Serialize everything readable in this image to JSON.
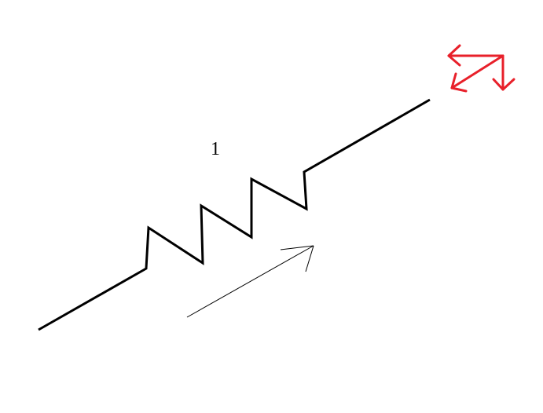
{
  "diagram": {
    "spring_label": "1",
    "colors": {
      "spring": "#000000",
      "direction_arrow": "#000000",
      "force_components": "#e8202a",
      "background": "#ffffff"
    },
    "icons": {
      "direction_arrow": "arrow-up-right-icon",
      "force_components": "force-components-arrows-icon"
    }
  }
}
